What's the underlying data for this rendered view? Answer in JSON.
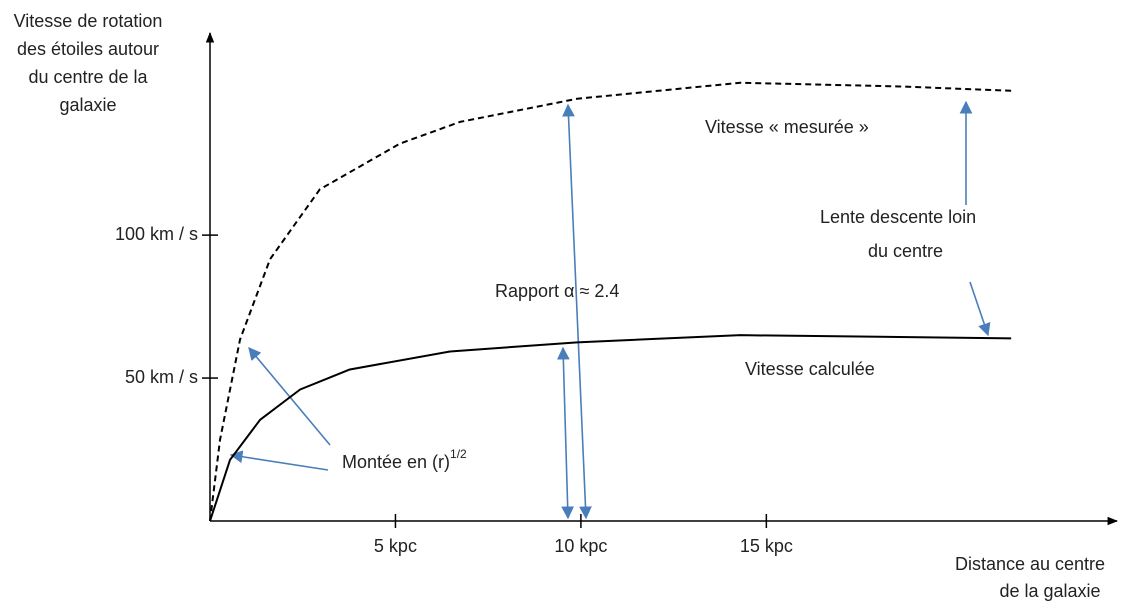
{
  "chart_data": {
    "type": "line",
    "y_axis_title": [
      "Vitesse de rotation",
      "des étoiles autour",
      "du centre de la",
      "galaxie"
    ],
    "x_axis_title": [
      "Distance au centre",
      "de la galaxie"
    ],
    "xlim": [
      0,
      24.4
    ],
    "ylim": [
      0,
      170
    ],
    "xticks": [
      {
        "value": 5,
        "label": "5 kpc"
      },
      {
        "value": 10,
        "label": "10 kpc"
      },
      {
        "value": 15,
        "label": "15 kpc"
      }
    ],
    "yticks": [
      {
        "value": 50,
        "label": "50 km / s"
      },
      {
        "value": 100,
        "label": "100 km / s"
      }
    ],
    "series": [
      {
        "name": "Vitesse « mesurée »",
        "color": "#000000",
        "style": "dashed",
        "x": [
          0,
          0.27,
          0.81,
          1.62,
          2.96,
          5.12,
          6.74,
          9.9,
          14.3,
          18.6,
          21.6
        ],
        "values": [
          0,
          28.4,
          63.5,
          91.6,
          116,
          132,
          139.6,
          147.7,
          153.3,
          152,
          150.5
        ]
      },
      {
        "name": "Vitesse calculée",
        "color": "#000000",
        "style": "solid",
        "x": [
          0,
          0.54,
          1.35,
          2.43,
          3.77,
          6.47,
          9.9,
          14.3,
          21.6
        ],
        "values": [
          0,
          21.4,
          35.4,
          46,
          53,
          59.3,
          62.5,
          65,
          63.9
        ]
      }
    ],
    "annotations": {
      "ratio": "Rapport α ≈ 2.4",
      "descent": [
        "Lente descente loin",
        "du centre"
      ],
      "rise": {
        "label": "Montée en (r)",
        "superscript": "1/2"
      }
    }
  }
}
